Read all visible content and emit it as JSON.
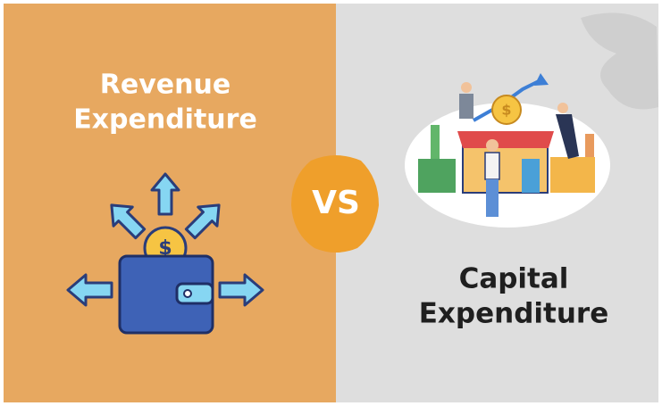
{
  "left": {
    "title_line1": "Revenue",
    "title_line2": "Expenditure",
    "coin_symbol": "$"
  },
  "center": {
    "label": "VS"
  },
  "right": {
    "title_line1": "Capital",
    "title_line2": "Expenditure",
    "coin_symbol": "$"
  }
}
